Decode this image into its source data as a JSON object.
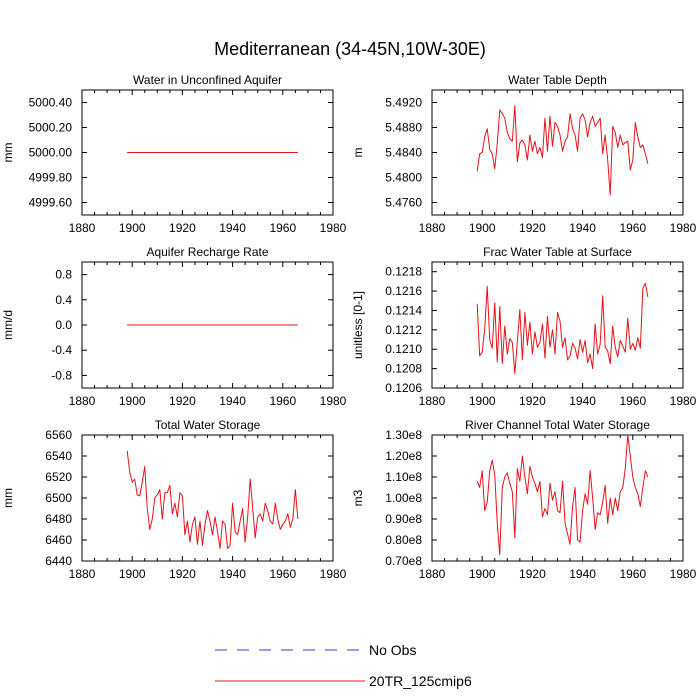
{
  "figure": {
    "title": "Mediterranean (34-45N,10W-30E)"
  },
  "legend": {
    "placement": "bottom-center",
    "entries": [
      {
        "label": "No Obs",
        "color": "#3c3cd2",
        "dash": "dashed"
      },
      {
        "label": "20TR_125cmip6",
        "color": "#e8111a",
        "dash": "solid"
      }
    ]
  },
  "chart_data": [
    {
      "type": "line",
      "title": "Water in Unconfined Aquifer",
      "ylabel": "mm",
      "xlim": [
        1880,
        1980
      ],
      "ylim": [
        4999.5,
        5000.5
      ],
      "xticks": [
        "1880",
        "1900",
        "1920",
        "1940",
        "1960",
        "1980"
      ],
      "yticks": [
        {
          "v": 5000.4,
          "label": "5000.40"
        },
        {
          "v": 5000.2,
          "label": "5000.20"
        },
        {
          "v": 5000.0,
          "label": "5000.00"
        },
        {
          "v": 4999.8,
          "label": "4999.80"
        },
        {
          "v": 4999.6,
          "label": "4999.60"
        }
      ],
      "series": [
        {
          "color": "#e8111a",
          "x_start": 1898,
          "x_step": 1,
          "values": [
            5000,
            5000,
            5000,
            5000,
            5000,
            5000,
            5000,
            5000,
            5000,
            5000,
            5000,
            5000,
            5000,
            5000,
            5000,
            5000,
            5000,
            5000,
            5000,
            5000,
            5000,
            5000,
            5000,
            5000,
            5000,
            5000,
            5000,
            5000,
            5000,
            5000,
            5000,
            5000,
            5000,
            5000,
            5000,
            5000,
            5000,
            5000,
            5000,
            5000,
            5000,
            5000,
            5000,
            5000,
            5000,
            5000,
            5000,
            5000,
            5000,
            5000,
            5000,
            5000,
            5000,
            5000,
            5000,
            5000,
            5000,
            5000,
            5000,
            5000,
            5000,
            5000,
            5000,
            5000,
            5000,
            5000,
            5000,
            5000,
            5000
          ]
        }
      ]
    },
    {
      "type": "line",
      "title": "Water Table Depth",
      "ylabel": "m",
      "xlim": [
        1880,
        1980
      ],
      "ylim": [
        5.474,
        5.494
      ],
      "xticks": [
        "1880",
        "1900",
        "1920",
        "1940",
        "1960",
        "1980"
      ],
      "yticks": [
        {
          "v": 5.492,
          "label": "5.4920"
        },
        {
          "v": 5.488,
          "label": "5.4880"
        },
        {
          "v": 5.484,
          "label": "5.4840"
        },
        {
          "v": 5.48,
          "label": "5.4800"
        },
        {
          "v": 5.476,
          "label": "5.4760"
        }
      ],
      "series": [
        {
          "color": "#e8111a",
          "x_start": 1898,
          "x_step": 1,
          "values": [
            5.481,
            5.4838,
            5.484,
            5.4865,
            5.4878,
            5.4845,
            5.4838,
            5.4814,
            5.4855,
            5.4908,
            5.4902,
            5.4895,
            5.4872,
            5.4862,
            5.4858,
            5.4915,
            5.4825,
            5.4855,
            5.486,
            5.4852,
            5.4828,
            5.4868,
            5.4842,
            5.4858,
            5.4838,
            5.4848,
            5.4832,
            5.4895,
            5.4842,
            5.4898,
            5.485,
            5.4888,
            5.4882,
            5.4868,
            5.4842,
            5.4858,
            5.4865,
            5.4902,
            5.4878,
            5.4868,
            5.4842,
            5.4895,
            5.4902,
            5.4892,
            5.4865,
            5.4888,
            5.4898,
            5.4882,
            5.4888,
            5.4895,
            5.4838,
            5.4868,
            5.4828,
            5.4772,
            5.4882,
            5.4872,
            5.4848,
            5.4868,
            5.4852,
            5.4856,
            5.4858,
            5.4812,
            5.4828,
            5.4888,
            5.4865,
            5.4848,
            5.4852,
            5.4838,
            5.4822
          ]
        }
      ]
    },
    {
      "type": "line",
      "title": "Aquifer Recharge Rate",
      "ylabel": "mm/d",
      "xlim": [
        1880,
        1980
      ],
      "ylim": [
        -1.0,
        1.0
      ],
      "xticks": [
        "1880",
        "1900",
        "1920",
        "1940",
        "1960",
        "1980"
      ],
      "yticks": [
        {
          "v": 0.8,
          "label": "0.8"
        },
        {
          "v": 0.4,
          "label": "0.4"
        },
        {
          "v": 0.0,
          "label": "0.0"
        },
        {
          "v": -0.4,
          "label": "-0.4"
        },
        {
          "v": -0.8,
          "label": "-0.8"
        }
      ],
      "series": [
        {
          "color": "#e8111a",
          "x_start": 1898,
          "x_step": 1,
          "values": [
            0,
            0,
            0,
            0,
            0,
            0,
            0,
            0,
            0,
            0,
            0,
            0,
            0,
            0,
            0,
            0,
            0,
            0,
            0,
            0,
            0,
            0,
            0,
            0,
            0,
            0,
            0,
            0,
            0,
            0,
            0,
            0,
            0,
            0,
            0,
            0,
            0,
            0,
            0,
            0,
            0,
            0,
            0,
            0,
            0,
            0,
            0,
            0,
            0,
            0,
            0,
            0,
            0,
            0,
            0,
            0,
            0,
            0,
            0,
            0,
            0,
            0,
            0,
            0,
            0,
            0,
            0,
            0,
            0
          ]
        }
      ]
    },
    {
      "type": "line",
      "title": "Frac Water Table at Surface",
      "ylabel": "unitless [0-1]",
      "xlim": [
        1880,
        1980
      ],
      "ylim": [
        0.1206,
        0.1219
      ],
      "xticks": [
        "1880",
        "1900",
        "1920",
        "1940",
        "1960",
        "1980"
      ],
      "yticks": [
        {
          "v": 0.1218,
          "label": "0.1218"
        },
        {
          "v": 0.1216,
          "label": "0.1216"
        },
        {
          "v": 0.1214,
          "label": "0.1214"
        },
        {
          "v": 0.1212,
          "label": "0.1212"
        },
        {
          "v": 0.121,
          "label": "0.1210"
        },
        {
          "v": 0.1208,
          "label": "0.1208"
        },
        {
          "v": 0.1206,
          "label": "0.1206"
        }
      ],
      "series": [
        {
          "color": "#e8111a",
          "x_start": 1898,
          "x_step": 1,
          "values": [
            0.12147,
            0.12093,
            0.12097,
            0.12121,
            0.12165,
            0.1211,
            0.12101,
            0.12148,
            0.12087,
            0.12144,
            0.12085,
            0.12124,
            0.12095,
            0.12111,
            0.12107,
            0.12075,
            0.12108,
            0.12141,
            0.12089,
            0.12138,
            0.12104,
            0.12128,
            0.12095,
            0.12118,
            0.12102,
            0.12107,
            0.12126,
            0.12091,
            0.12134,
            0.12102,
            0.1212,
            0.12095,
            0.12138,
            0.12129,
            0.12102,
            0.12112,
            0.12089,
            0.12093,
            0.12106,
            0.12101,
            0.1209,
            0.1211,
            0.12097,
            0.12109,
            0.12086,
            0.12095,
            0.1208,
            0.12126,
            0.12095,
            0.12105,
            0.12155,
            0.12102,
            0.12098,
            0.12085,
            0.12124,
            0.12102,
            0.12092,
            0.12109,
            0.12103,
            0.12097,
            0.12132,
            0.121,
            0.12106,
            0.12099,
            0.12112,
            0.12101,
            0.12163,
            0.12168,
            0.12154
          ]
        }
      ]
    },
    {
      "type": "line",
      "title": "Total Water Storage",
      "ylabel": "mm",
      "xlim": [
        1880,
        1980
      ],
      "ylim": [
        6440,
        6560
      ],
      "xticks": [
        "1880",
        "1900",
        "1920",
        "1940",
        "1960",
        "1980"
      ],
      "yticks": [
        {
          "v": 6560,
          "label": "6560"
        },
        {
          "v": 6540,
          "label": "6540"
        },
        {
          "v": 6520,
          "label": "6520"
        },
        {
          "v": 6500,
          "label": "6500"
        },
        {
          "v": 6480,
          "label": "6480"
        },
        {
          "v": 6460,
          "label": "6460"
        },
        {
          "v": 6440,
          "label": "6440"
        }
      ],
      "series": [
        {
          "color": "#e8111a",
          "x_start": 1898,
          "x_step": 1,
          "values": [
            6545,
            6525,
            6515,
            6518,
            6503,
            6502,
            6515,
            6530,
            6490,
            6470,
            6480,
            6500,
            6503,
            6508,
            6480,
            6505,
            6505,
            6512,
            6485,
            6495,
            6482,
            6505,
            6502,
            6465,
            6478,
            6458,
            6475,
            6482,
            6456,
            6478,
            6455,
            6475,
            6488,
            6478,
            6465,
            6482,
            6468,
            6452,
            6478,
            6475,
            6452,
            6455,
            6495,
            6468,
            6465,
            6478,
            6490,
            6458,
            6482,
            6518,
            6490,
            6462,
            6482,
            6485,
            6478,
            6495,
            6488,
            6478,
            6475,
            6495,
            6480,
            6470,
            6475,
            6478,
            6485,
            6472,
            6480,
            6508,
            6480
          ]
        }
      ]
    },
    {
      "type": "line",
      "title": "River Channel Total Water Storage",
      "ylabel": "m3",
      "xlim": [
        1880,
        1980
      ],
      "ylim": [
        70000000.0,
        130000000.0
      ],
      "xticks": [
        "1880",
        "1900",
        "1920",
        "1940",
        "1960",
        "1980"
      ],
      "yticks": [
        {
          "v": 130000000.0,
          "label": "1.30e8"
        },
        {
          "v": 120000000.0,
          "label": "1.20e8"
        },
        {
          "v": 110000000.0,
          "label": "1.10e8"
        },
        {
          "v": 100000000.0,
          "label": "1.00e8"
        },
        {
          "v": 90000000.0,
          "label": "0.90e8"
        },
        {
          "v": 80000000.0,
          "label": "0.80e8"
        },
        {
          "v": 70000000.0,
          "label": "0.70e8"
        }
      ],
      "series": [
        {
          "color": "#e8111a",
          "x_start": 1898,
          "x_step": 1,
          "values": [
            108000000.0,
            105000000.0,
            113000000.0,
            94000000.0,
            98000000.0,
            113000000.0,
            118000000.0,
            111000000.0,
            88000000.0,
            73000000.0,
            105000000.0,
            110000000.0,
            112000000.0,
            107000000.0,
            103000000.0,
            81000000.0,
            114000000.0,
            108000000.0,
            120000000.0,
            110000000.0,
            102000000.0,
            115000000.0,
            110000000.0,
            107000000.0,
            103000000.0,
            108000000.0,
            91000000.0,
            95000000.0,
            92000000.0,
            107000000.0,
            99000000.0,
            103000000.0,
            94000000.0,
            93000000.0,
            108000000.0,
            88000000.0,
            83000000.0,
            78000000.0,
            96000000.0,
            105000000.0,
            80000000.0,
            79000000.0,
            94000000.0,
            102000000.0,
            97000000.0,
            113000000.0,
            100000000.0,
            85000000.0,
            93000000.0,
            92000000.0,
            98000000.0,
            106000000.0,
            88000000.0,
            100000000.0,
            92000000.0,
            100000000.0,
            94000000.0,
            103000000.0,
            105000000.0,
            114000000.0,
            130000000.0,
            120000000.0,
            110000000.0,
            105000000.0,
            102000000.0,
            96000000.0,
            105000000.0,
            113000000.0,
            110000000.0
          ]
        }
      ]
    }
  ]
}
